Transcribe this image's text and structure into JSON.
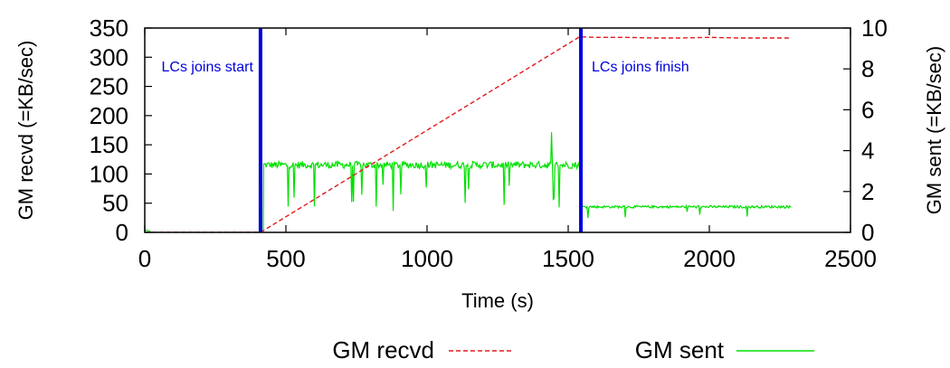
{
  "chart_data": {
    "type": "line",
    "title": "",
    "xlabel": "Time (s)",
    "ylabel_left": "GM recvd  (=KB/sec)",
    "ylabel_right": "GM sent  (=KB/sec)",
    "xlim": [
      0,
      2500
    ],
    "ylim_left": [
      0,
      350
    ],
    "ylim_right": [
      0,
      10
    ],
    "xticks": [
      0,
      500,
      1000,
      1500,
      2000,
      2500
    ],
    "yticks_left": [
      0,
      50,
      100,
      150,
      200,
      250,
      300,
      350
    ],
    "yticks_right": [
      0,
      2,
      4,
      6,
      8,
      10
    ],
    "grid": false,
    "legend_position": "bottom",
    "series": [
      {
        "name": "GM recvd",
        "axis": "left",
        "color": "#e41a1c",
        "style": "dashed",
        "x": [
          0,
          100,
          200,
          300,
          410,
          1540,
          1600,
          1700,
          1800,
          1900,
          2000,
          2100,
          2200,
          2290
        ],
        "y": [
          0,
          0,
          0,
          0,
          0,
          335,
          334,
          334,
          333,
          333,
          334,
          333,
          333,
          333
        ]
      },
      {
        "name": "GM sent",
        "axis": "right",
        "color": "#00e000",
        "style": "solid",
        "segments": [
          {
            "x": [
              0,
              10,
              20
            ],
            "y": [
              0.1,
              0.1,
              0.05
            ]
          },
          {
            "x": [
              420,
              1540
            ],
            "level": 3.3,
            "dips_to": 0.9,
            "spike": [
              1440,
              4.9
            ]
          },
          {
            "x": [
              1545,
              2290
            ],
            "level": 1.25,
            "dips_to": 0.7
          }
        ]
      }
    ],
    "annotations": [
      {
        "x": 410,
        "label": "LCs joins start",
        "color": "#0000dd"
      },
      {
        "x": 1545,
        "label": "LCs joins finish",
        "color": "#0000dd"
      }
    ]
  },
  "legend": {
    "recvd_label": "GM recvd",
    "sent_label": "GM sent"
  }
}
